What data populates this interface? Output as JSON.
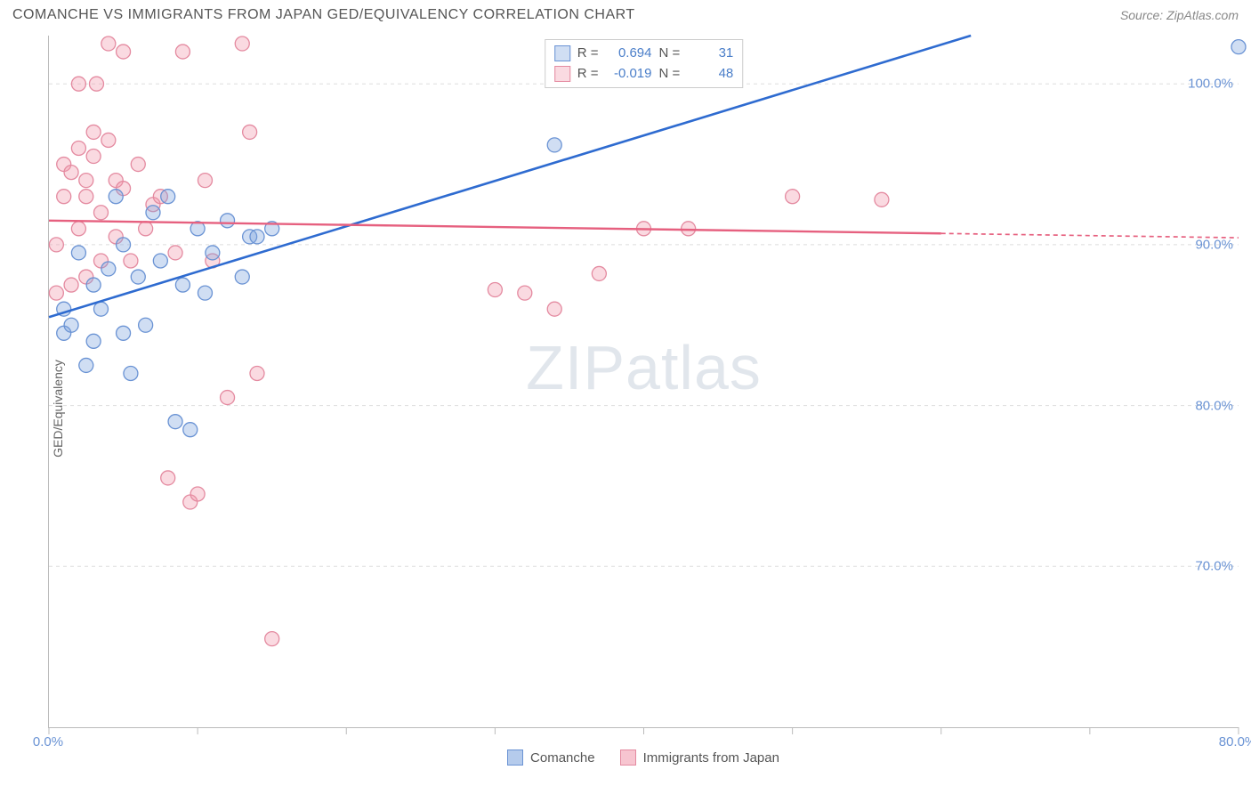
{
  "title": "COMANCHE VS IMMIGRANTS FROM JAPAN GED/EQUIVALENCY CORRELATION CHART",
  "source": "Source: ZipAtlas.com",
  "ylabel": "GED/Equivalency",
  "watermark_a": "ZIP",
  "watermark_b": "atlas",
  "chart": {
    "type": "scatter",
    "xlim": [
      0,
      80
    ],
    "ylim": [
      60,
      103
    ],
    "xticks": [
      0,
      10,
      20,
      30,
      40,
      50,
      60,
      70,
      80
    ],
    "xtick_labels": {
      "0": "0.0%",
      "80": "80.0%"
    },
    "yticks": [
      70,
      80,
      90,
      100
    ],
    "ytick_labels": {
      "70": "70.0%",
      "80": "80.0%",
      "90": "90.0%",
      "100": "100.0%"
    },
    "grid_color": "#dddddd",
    "grid_dash": "4 4",
    "background": "#ffffff",
    "marker_radius": 8,
    "marker_stroke_width": 1.3,
    "series": [
      {
        "name": "Comanche",
        "fill": "rgba(120,160,220,0.35)",
        "stroke": "#6a93d4",
        "r_value": "0.694",
        "n_value": "31",
        "trend": {
          "x1": 0,
          "y1": 85.5,
          "x2": 62,
          "y2": 103,
          "color": "#2e6bd0",
          "width": 2.6,
          "extrapolate": false
        },
        "points": [
          [
            1,
            86
          ],
          [
            1,
            84.5
          ],
          [
            1.5,
            85
          ],
          [
            2,
            89.5
          ],
          [
            2.5,
            82.5
          ],
          [
            3,
            84
          ],
          [
            3,
            87.5
          ],
          [
            3.5,
            86
          ],
          [
            4,
            88.5
          ],
          [
            4.5,
            93
          ],
          [
            5,
            84.5
          ],
          [
            5,
            90
          ],
          [
            5.5,
            82
          ],
          [
            6,
            88
          ],
          [
            6.5,
            85
          ],
          [
            7,
            92
          ],
          [
            7.5,
            89
          ],
          [
            8,
            93
          ],
          [
            8.5,
            79
          ],
          [
            9,
            87.5
          ],
          [
            9.5,
            78.5
          ],
          [
            10,
            91
          ],
          [
            10.5,
            87
          ],
          [
            11,
            89.5
          ],
          [
            12,
            91.5
          ],
          [
            13,
            88
          ],
          [
            13.5,
            90.5
          ],
          [
            14,
            90.5
          ],
          [
            15,
            91
          ],
          [
            34,
            96.2
          ],
          [
            80,
            102.3
          ]
        ]
      },
      {
        "name": "Immigrants from Japan",
        "fill": "rgba(240,150,170,0.35)",
        "stroke": "#e48aa0",
        "r_value": "-0.019",
        "n_value": "48",
        "trend": {
          "x1": 0,
          "y1": 91.5,
          "x2": 60,
          "y2": 90.7,
          "color": "#e6607f",
          "width": 2.4,
          "extrapolate": true,
          "extrap_dash": "5 4"
        },
        "points": [
          [
            0.5,
            87
          ],
          [
            0.5,
            90
          ],
          [
            1,
            93
          ],
          [
            1,
            95
          ],
          [
            1.5,
            87.5
          ],
          [
            1.5,
            94.5
          ],
          [
            2,
            91
          ],
          [
            2,
            96
          ],
          [
            2,
            100
          ],
          [
            2.5,
            88
          ],
          [
            2.5,
            93
          ],
          [
            2.5,
            94
          ],
          [
            3,
            95.5
          ],
          [
            3,
            97
          ],
          [
            3.2,
            100
          ],
          [
            3.5,
            89
          ],
          [
            3.5,
            92
          ],
          [
            4,
            96.5
          ],
          [
            4,
            102.5
          ],
          [
            4.5,
            90.5
          ],
          [
            4.5,
            94
          ],
          [
            5,
            93.5
          ],
          [
            5,
            102
          ],
          [
            5.5,
            89
          ],
          [
            6,
            95
          ],
          [
            6.5,
            91
          ],
          [
            7,
            92.5
          ],
          [
            7.5,
            93
          ],
          [
            8,
            75.5
          ],
          [
            8.5,
            89.5
          ],
          [
            9,
            102
          ],
          [
            9.5,
            74
          ],
          [
            10,
            74.5
          ],
          [
            10.5,
            94
          ],
          [
            11,
            89
          ],
          [
            12,
            80.5
          ],
          [
            13,
            102.5
          ],
          [
            13.5,
            97
          ],
          [
            14,
            82
          ],
          [
            15,
            65.5
          ],
          [
            30,
            87.2
          ],
          [
            32,
            87
          ],
          [
            34,
            86
          ],
          [
            37,
            88.2
          ],
          [
            40,
            91
          ],
          [
            43,
            91
          ],
          [
            50,
            93
          ],
          [
            56,
            92.8
          ]
        ]
      }
    ]
  },
  "legend_bottom": [
    {
      "label": "Comanche",
      "fill": "rgba(120,160,220,0.55)",
      "stroke": "#6a93d4"
    },
    {
      "label": "Immigrants from Japan",
      "fill": "rgba(240,150,170,0.55)",
      "stroke": "#e48aa0"
    }
  ]
}
